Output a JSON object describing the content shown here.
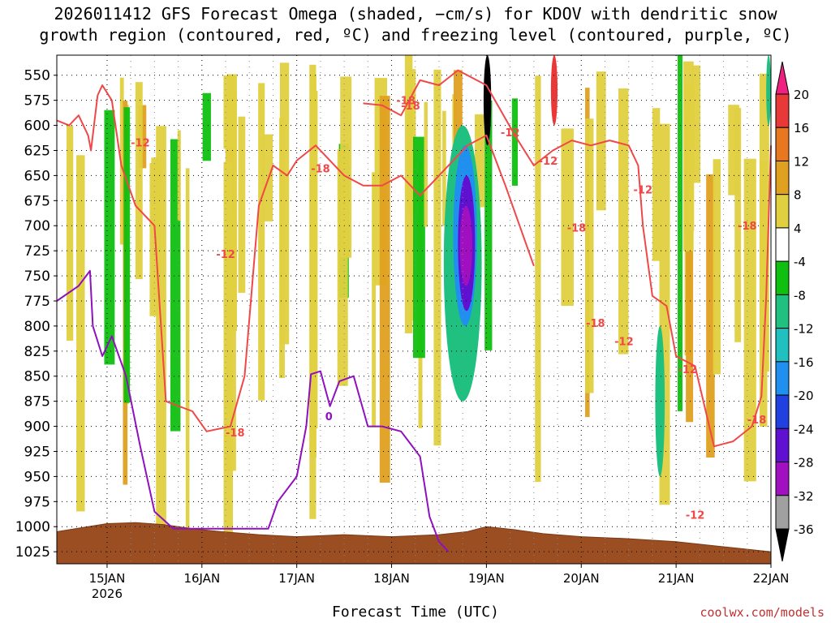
{
  "title": {
    "line1": "2026011412 GFS Forecast Omega (shaded, −cm/s) for KDOV with dendritic snow",
    "line2": "growth region (contoured, red, ºC) and freezing level (contoured, purple, ºC)"
  },
  "xlabel": "Forecast Time (UTC)",
  "credit": "coolwx.com/models",
  "colorbar": {
    "labels": [
      "20",
      "16",
      "12",
      "8",
      "4",
      "-4",
      "-8",
      "-12",
      "-16",
      "-20",
      "-24",
      "-28",
      "-32",
      "-36"
    ],
    "colors": [
      "#f02080",
      "#e83838",
      "#e87820",
      "#e0a020",
      "#e0d040",
      "#ffffff",
      "#10c010",
      "#20c080",
      "#20c0c0",
      "#2090f0",
      "#2040e0",
      "#6010d0",
      "#a010c0",
      "#a0a0a0",
      "#000000"
    ]
  },
  "contour_labels": [
    "-18",
    "-12",
    "-18",
    "-18",
    "-12",
    "-12",
    "-12",
    "-18",
    "-18",
    "-12",
    "-18",
    "-12",
    "-12",
    "-18",
    "-18",
    "-12",
    "0"
  ],
  "chart_data": {
    "type": "heatmap",
    "title": "2026011412 GFS Forecast Omega (shaded, −cm/s) for KDOV with dendritic snow growth region (contoured, red, ºC) and freezing level (contoured, purple, ºC)",
    "xlabel": "Forecast Time (UTC)",
    "ylabel": "",
    "x_ticks": [
      "15JAN",
      "16JAN",
      "17JAN",
      "18JAN",
      "19JAN",
      "20JAN",
      "21JAN",
      "22JAN"
    ],
    "x_sublabel": "2026",
    "y_ticks": [
      550,
      575,
      600,
      625,
      650,
      675,
      700,
      725,
      750,
      775,
      800,
      825,
      850,
      875,
      900,
      925,
      950,
      975,
      1000,
      1025
    ],
    "y_range": [
      530,
      1037
    ],
    "y_inverted": true,
    "grid": true,
    "colorbar_levels": [
      20,
      16,
      12,
      8,
      4,
      -4,
      -8,
      -12,
      -16,
      -20,
      -24,
      -28,
      -32,
      -36
    ],
    "omega_regions": [
      {
        "t0": 18.55,
        "t1": 18.95,
        "p_top": 600,
        "p_bot": 875,
        "value": -8
      },
      {
        "t0": 18.65,
        "t1": 18.9,
        "p_top": 620,
        "p_bot": 800,
        "value": -16
      },
      {
        "t0": 18.7,
        "t1": 18.88,
        "p_top": 650,
        "p_bot": 785,
        "value": -24
      },
      {
        "t0": 18.72,
        "t1": 18.85,
        "p_top": 680,
        "p_bot": 760,
        "value": -28
      },
      {
        "t0": 18.97,
        "t1": 19.05,
        "p_top": 530,
        "p_bot": 620,
        "value": -36
      },
      {
        "t0": 20.78,
        "t1": 20.88,
        "p_top": 800,
        "p_bot": 950,
        "value": -8
      },
      {
        "t0": 19.68,
        "t1": 19.75,
        "p_top": 530,
        "p_bot": 600,
        "value": 16
      },
      {
        "t0": 21.95,
        "t1": 22.0,
        "p_top": 530,
        "p_bot": 600,
        "value": -8
      }
    ],
    "dgz_minus12_line": [
      [
        14.47,
        595
      ],
      [
        14.6,
        600
      ],
      [
        14.7,
        590
      ],
      [
        14.8,
        610
      ],
      [
        14.83,
        625
      ],
      [
        14.9,
        570
      ],
      [
        14.95,
        560
      ],
      [
        15.05,
        575
      ],
      [
        15.15,
        640
      ],
      [
        15.3,
        680
      ],
      [
        15.5,
        700
      ],
      [
        15.62,
        875
      ],
      [
        15.9,
        885
      ],
      [
        16.05,
        905
      ],
      [
        16.3,
        900
      ],
      [
        16.45,
        850
      ],
      [
        16.6,
        680
      ],
      [
        16.75,
        640
      ],
      [
        16.9,
        650
      ],
      [
        17.0,
        635
      ],
      [
        17.2,
        620
      ],
      [
        17.5,
        650
      ],
      [
        17.7,
        660
      ],
      [
        17.9,
        660
      ],
      [
        18.1,
        650
      ],
      [
        18.3,
        670
      ],
      [
        18.5,
        650
      ],
      [
        18.8,
        620
      ],
      [
        19.0,
        610
      ],
      [
        19.2,
        660
      ],
      [
        19.35,
        700
      ],
      [
        19.5,
        740
      ]
    ],
    "dgz_minus18_line": [
      [
        17.7,
        578
      ],
      [
        17.9,
        580
      ],
      [
        18.1,
        590
      ],
      [
        18.3,
        555
      ],
      [
        18.5,
        560
      ],
      [
        18.7,
        545
      ],
      [
        19.0,
        560
      ],
      [
        19.3,
        610
      ],
      [
        19.5,
        640
      ],
      [
        19.7,
        625
      ],
      [
        19.9,
        615
      ],
      [
        20.1,
        620
      ],
      [
        20.3,
        615
      ],
      [
        20.5,
        620
      ],
      [
        20.6,
        640
      ],
      [
        20.65,
        700
      ],
      [
        20.75,
        770
      ],
      [
        20.9,
        780
      ],
      [
        21.0,
        830
      ],
      [
        21.2,
        840
      ],
      [
        21.4,
        920
      ],
      [
        21.6,
        915
      ],
      [
        21.8,
        900
      ],
      [
        21.9,
        870
      ],
      [
        21.95,
        770
      ],
      [
        22.0,
        620
      ]
    ],
    "freezing_level": [
      [
        14.47,
        775
      ],
      [
        14.7,
        760
      ],
      [
        14.82,
        745
      ],
      [
        14.85,
        800
      ],
      [
        14.95,
        830
      ],
      [
        15.05,
        810
      ],
      [
        15.2,
        850
      ],
      [
        15.35,
        920
      ],
      [
        15.5,
        985
      ],
      [
        15.7,
        1002
      ],
      [
        16.7,
        1002
      ],
      [
        16.8,
        975
      ],
      [
        17.0,
        950
      ],
      [
        17.1,
        900
      ],
      [
        17.15,
        848
      ],
      [
        17.25,
        845
      ],
      [
        17.35,
        880
      ],
      [
        17.45,
        855
      ],
      [
        17.6,
        850
      ],
      [
        17.75,
        900
      ],
      [
        17.9,
        900
      ],
      [
        18.1,
        905
      ],
      [
        18.3,
        930
      ],
      [
        18.4,
        990
      ],
      [
        18.5,
        1015
      ],
      [
        18.6,
        1025
      ]
    ],
    "terrain": [
      [
        14.47,
        1005
      ],
      [
        14.8,
        1000
      ],
      [
        15.0,
        997
      ],
      [
        15.3,
        996
      ],
      [
        15.6,
        998
      ],
      [
        15.9,
        1002
      ],
      [
        16.2,
        1005
      ],
      [
        16.6,
        1008
      ],
      [
        17.0,
        1010
      ],
      [
        17.5,
        1008
      ],
      [
        18.0,
        1010
      ],
      [
        18.5,
        1008
      ],
      [
        18.8,
        1005
      ],
      [
        19.0,
        1000
      ],
      [
        19.3,
        1003
      ],
      [
        19.6,
        1007
      ],
      [
        20.0,
        1010
      ],
      [
        20.5,
        1012
      ],
      [
        21.0,
        1015
      ],
      [
        21.5,
        1020
      ],
      [
        22.0,
        1025
      ]
    ]
  }
}
